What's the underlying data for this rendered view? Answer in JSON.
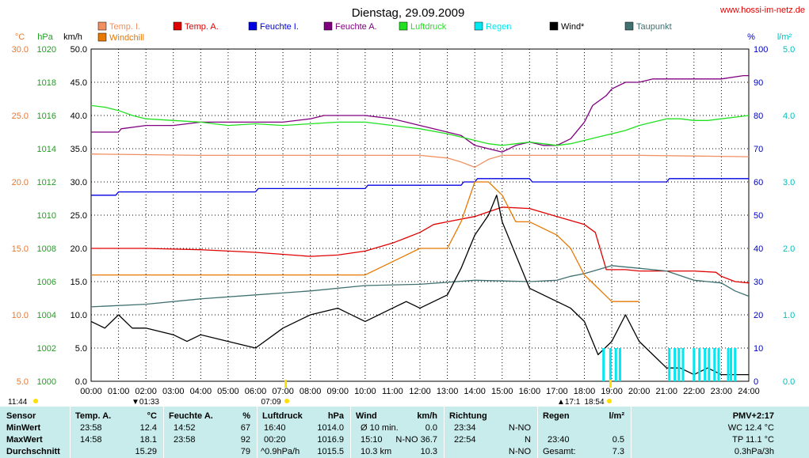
{
  "header": {
    "title": "Dienstag, 29.09.2009",
    "site": "www.hossi-im-netz.de"
  },
  "axes": {
    "left_temp": {
      "unit": "°C",
      "ticks": [
        "30.0",
        "25.0",
        "20.0",
        "15.0",
        "10.0",
        "5.0"
      ],
      "color": "#e87830"
    },
    "left_pressure": {
      "unit": "hPa",
      "ticks": [
        "1020",
        "1018",
        "1016",
        "1014",
        "1012",
        "1010",
        "1008",
        "1006",
        "1004",
        "1002",
        "1000"
      ],
      "color": "#20a020"
    },
    "left_wind": {
      "unit": "km/h",
      "ticks": [
        "50.0",
        "45.0",
        "40.0",
        "35.0",
        "30.0",
        "25.0",
        "20.0",
        "15.0",
        "10.0",
        "5.0",
        "0.0"
      ],
      "color": "#000000"
    },
    "right_humidity": {
      "unit": "%",
      "ticks": [
        "100",
        "90",
        "80",
        "70",
        "60",
        "50",
        "40",
        "30",
        "20",
        "10",
        "0"
      ],
      "color": "#0000c0"
    },
    "right_rain": {
      "unit": "l/m²",
      "ticks": [
        "5.0",
        "4.0",
        "3.0",
        "2.0",
        "1.0",
        "0.0"
      ],
      "color": "#00c0c0"
    },
    "x_ticks": [
      "00:00",
      "01:00",
      "02:00",
      "03:00",
      "04:00",
      "05:00",
      "06:00",
      "07:00",
      "08:00",
      "09:00",
      "10:00",
      "11:00",
      "12:00",
      "13:00",
      "14:00",
      "15:00",
      "16:00",
      "17:00",
      "18:00",
      "19:00",
      "20:00",
      "21:00",
      "22:00",
      "23:00",
      "24:00"
    ]
  },
  "markers": {
    "sunrise": "07:09",
    "sunset": "18:54",
    "moonset": "01:33",
    "moonrise": "17:1",
    "daylength": "11:44"
  },
  "legend": [
    {
      "label": "Temp. I.",
      "color": "#f09060"
    },
    {
      "label": "Windchill",
      "color": "#e87800"
    },
    {
      "label": "Temp. A.",
      "color": "#e00000"
    },
    {
      "label": "Feuchte I.",
      "color": "#0000e0"
    },
    {
      "label": "Feuchte A.",
      "color": "#800080"
    },
    {
      "label": "Luftdruck",
      "color": "#20e020"
    },
    {
      "label": "Regen",
      "color": "#00e8f0"
    },
    {
      "label": "Wind*",
      "color": "#000000"
    },
    {
      "label": "Taupunkt",
      "color": "#407070"
    }
  ],
  "chart_data": {
    "type": "line",
    "x_range": [
      0,
      24
    ],
    "ylim_temp": [
      5,
      30
    ],
    "ylim_pressure": [
      1000,
      1020
    ],
    "ylim_wind": [
      0,
      50
    ],
    "ylim_humidity": [
      0,
      100
    ],
    "ylim_rain": [
      0,
      5
    ],
    "grid": true,
    "series": [
      {
        "name": "Temp. I.",
        "axis": "temp",
        "color": "#f09060",
        "x": [
          0,
          4,
          8,
          12,
          13,
          13.5,
          14,
          14.5,
          15,
          16,
          20,
          24
        ],
        "y": [
          22.1,
          22.0,
          22.0,
          22.0,
          21.8,
          21.5,
          21.1,
          21.7,
          22.0,
          22.0,
          22.0,
          21.9
        ]
      },
      {
        "name": "Temp. A.",
        "axis": "temp",
        "color": "#e00000",
        "x": [
          0,
          2,
          4,
          6,
          8,
          9,
          10,
          11,
          11.5,
          12,
          12.5,
          13,
          14,
          15,
          16,
          17,
          18,
          18.4,
          18.8,
          19.5,
          20,
          21,
          22,
          22.8,
          23,
          23.5,
          24
        ],
        "y": [
          15.0,
          15.0,
          14.9,
          14.7,
          14.4,
          14.5,
          14.8,
          15.4,
          15.8,
          16.2,
          16.8,
          17.0,
          17.4,
          18.1,
          18.0,
          17.4,
          16.8,
          16.2,
          13.4,
          13.4,
          13.3,
          13.3,
          13.3,
          13.2,
          12.9,
          12.5,
          12.4
        ]
      },
      {
        "name": "Feuchte I.",
        "axis": "humidity",
        "color": "#0000e0",
        "x": [
          0,
          0.9,
          1,
          6,
          6.1,
          10,
          10.1,
          13.5,
          13.6,
          14,
          14.1,
          16,
          16.1,
          18.9,
          19,
          21,
          21.1,
          24
        ],
        "y": [
          56,
          56,
          57,
          57,
          58,
          58,
          59,
          59,
          60,
          60,
          61,
          61,
          60,
          60,
          60,
          60,
          61,
          61
        ]
      },
      {
        "name": "Feuchte A.",
        "axis": "humidity",
        "color": "#800080",
        "x": [
          0,
          1,
          1.1,
          2,
          3,
          4,
          5,
          6,
          7,
          8,
          8.5,
          9,
          10,
          11,
          11.5,
          12,
          12.5,
          13,
          13.5,
          14,
          14.5,
          15,
          15.5,
          16,
          16.5,
          17,
          17.5,
          18,
          18.3,
          18.8,
          19,
          19.5,
          20,
          20.5,
          21,
          22,
          23,
          23.8,
          24
        ],
        "y": [
          75,
          75,
          76,
          77,
          77,
          78,
          78,
          78,
          78,
          79,
          80,
          80,
          80,
          79,
          78,
          77,
          76,
          75,
          74,
          71,
          70,
          69,
          71,
          72,
          71,
          71,
          73,
          78,
          83,
          86,
          88,
          90,
          90,
          91,
          91,
          91,
          91,
          92,
          92
        ]
      },
      {
        "name": "Luftdruck",
        "axis": "pressure",
        "color": "#20e020",
        "x": [
          0,
          0.5,
          1,
          1.5,
          2,
          3,
          4,
          5,
          6,
          7,
          8,
          9,
          10,
          11,
          12,
          13,
          13.5,
          14,
          14.5,
          15,
          15.5,
          16,
          16.5,
          17,
          17.5,
          18,
          18.5,
          19,
          19.5,
          20,
          20.5,
          21,
          21.5,
          22,
          22.5,
          23,
          23.5,
          24
        ],
        "y": [
          1016.6,
          1016.5,
          1016.3,
          1016.0,
          1015.8,
          1015.7,
          1015.6,
          1015.4,
          1015.5,
          1015.4,
          1015.5,
          1015.6,
          1015.6,
          1015.4,
          1015.2,
          1014.9,
          1014.7,
          1014.5,
          1014.3,
          1014.2,
          1014.3,
          1014.4,
          1014.3,
          1014.2,
          1014.3,
          1014.5,
          1014.7,
          1014.9,
          1015.1,
          1015.4,
          1015.6,
          1015.8,
          1015.8,
          1015.7,
          1015.7,
          1015.8,
          1015.9,
          1016.0
        ]
      },
      {
        "name": "Taupunkt",
        "axis": "temp",
        "color": "#407070",
        "x": [
          0,
          2,
          4,
          6,
          8,
          10,
          12,
          14,
          16,
          17,
          17.5,
          18,
          18.5,
          19,
          20,
          21,
          22,
          23,
          23.5,
          24
        ],
        "y": [
          10.6,
          10.8,
          11.2,
          11.5,
          11.8,
          12.2,
          12.3,
          12.6,
          12.5,
          12.6,
          12.9,
          13.1,
          13.4,
          13.7,
          13.5,
          13.3,
          12.6,
          12.4,
          11.8,
          11.4
        ]
      },
      {
        "name": "Wind*",
        "axis": "wind",
        "color": "#000000",
        "x": [
          0,
          0.5,
          1,
          1.5,
          2,
          3,
          3.5,
          4,
          5,
          6,
          7,
          8,
          9,
          10,
          11,
          11.5,
          12,
          12.5,
          13,
          13.5,
          14,
          14.5,
          14.8,
          15,
          15.5,
          16,
          17,
          17.5,
          18,
          18.5,
          19,
          19.5,
          20,
          20.5,
          21,
          21.5,
          22,
          22.5,
          23,
          23.5,
          24
        ],
        "y": [
          9,
          8,
          10,
          8,
          8,
          7,
          6,
          7,
          6,
          5,
          8,
          10,
          11,
          9,
          11,
          12,
          11,
          12,
          13,
          17,
          22,
          25,
          28,
          24,
          19,
          14,
          12,
          11,
          9,
          4,
          6,
          10,
          6,
          4,
          2,
          2,
          1,
          2,
          1,
          1,
          1
        ]
      },
      {
        "name": "Windchill",
        "axis": "temp",
        "color": "#e87800",
        "x": [
          0,
          1,
          2,
          3,
          4,
          5,
          6,
          7,
          8,
          9,
          10,
          11,
          12,
          13,
          13.5,
          14,
          14.5,
          15,
          15.5,
          16,
          17,
          17.5,
          18,
          18.5,
          19,
          19.5,
          20
        ],
        "y": [
          13,
          13,
          13,
          13,
          13,
          13,
          13,
          13,
          13,
          13,
          13,
          14,
          15,
          15,
          17,
          20,
          20,
          19,
          17,
          17,
          16,
          15,
          13,
          12,
          11,
          11,
          11
        ]
      },
      {
        "name": "Regen",
        "axis": "rain",
        "color": "#00e8f0",
        "x": [
          18.7,
          18.95,
          19.15,
          19.3,
          21.1,
          21.3,
          21.45,
          21.6,
          22.0,
          22.2,
          22.4,
          22.55,
          22.75,
          22.9,
          23.25,
          23.35,
          23.5
        ],
        "y": [
          0.5,
          0.5,
          0.5,
          0.5,
          0.5,
          0.5,
          0.5,
          0.5,
          0.5,
          0.5,
          0.5,
          0.5,
          0.5,
          0.5,
          0.5,
          0.5,
          0.5
        ]
      }
    ]
  },
  "stats": {
    "sensor": {
      "title": "Sensor",
      "rows": [
        "MinWert",
        "MaxWert",
        "Durchschnitt"
      ]
    },
    "temp": {
      "title": "Temp. A.",
      "unit": "°C",
      "rows": [
        [
          "23:58",
          "12.4"
        ],
        [
          "14:58",
          "18.1"
        ],
        [
          "",
          "15.29"
        ]
      ]
    },
    "feuchte": {
      "title": "Feuchte A.",
      "unit": "%",
      "rows": [
        [
          "14:52",
          "67"
        ],
        [
          "23:58",
          "92"
        ],
        [
          "",
          "79"
        ]
      ]
    },
    "luftdruck": {
      "title": "Luftdruck",
      "unit": "hPa",
      "rows": [
        [
          "16:40",
          "1014.0"
        ],
        [
          "00:20",
          "1016.9"
        ],
        [
          "^0.9hPa/h",
          "1015.5"
        ]
      ]
    },
    "wind": {
      "title": "Wind",
      "unit": "km/h",
      "rows": [
        [
          "Ø 10 min.",
          "0.0"
        ],
        [
          "15:10",
          "N-NO 36.7"
        ],
        [
          "10.3 km",
          "10.3"
        ]
      ]
    },
    "richtung": {
      "title": "Richtung",
      "rows": [
        [
          "23:34",
          "N-NO"
        ],
        [
          "22:54",
          "N"
        ],
        [
          "",
          "N-NO"
        ]
      ]
    },
    "regen": {
      "title": "Regen",
      "unit": "l/m²",
      "rows": [
        [
          "",
          ""
        ],
        [
          "23:40",
          "0.5"
        ],
        [
          "Gesamt:",
          "7.3"
        ]
      ]
    },
    "pmv": {
      "title": "PMV+2:17",
      "rows": [
        "WC 12.4 °C",
        "TP 11.1 °C",
        "0.3hPa/3h"
      ]
    }
  }
}
